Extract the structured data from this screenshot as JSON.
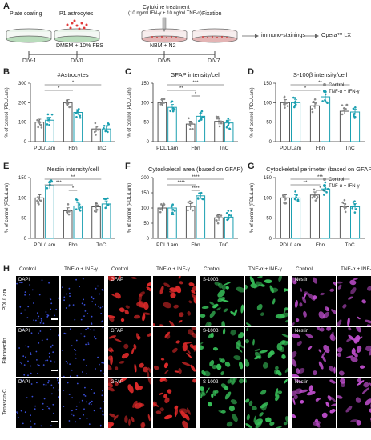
{
  "panel_a": {
    "letter": "A",
    "plate_coating": "Plate coating",
    "astrocytes": "P1 astrocytes",
    "cytokine_line1": "Cytokine treatment",
    "cytokine_line2": "(10 ng/ml IFN-γ + 10 ng/ml TNF-α)",
    "fixation": "Fixation",
    "medium1": "DMEM + 10% FBS",
    "medium2": "NBM + N2",
    "immuno": "immuno-stainings",
    "opera": "Opera™ LX",
    "days": [
      "DIV-1",
      "DIV0",
      "DIV5",
      "DIV7"
    ]
  },
  "legend": {
    "control": "Control",
    "treated": "TNF-α + IFN-γ"
  },
  "colors": {
    "control": "#8a8a8a",
    "treated": "#1a9fb0",
    "bar_edge": "#555555"
  },
  "chart_data": [
    {
      "panel": "B",
      "type": "bar",
      "title": "#Astrocytes",
      "ylabel": "% of control (PDL/Lam)",
      "ylim": [
        0,
        300
      ],
      "yticks": [
        0,
        100,
        200,
        300
      ],
      "categories": [
        "PDL/Lam",
        "Fbn",
        "TnC"
      ],
      "series": [
        {
          "name": "Control",
          "values": [
            100,
            200,
            65
          ]
        },
        {
          "name": "TNF-α + IFN-γ",
          "values": [
            110,
            150,
            65
          ]
        }
      ],
      "sig": [
        "*",
        "*"
      ]
    },
    {
      "panel": "C",
      "type": "bar",
      "title": "GFAP intensity/cell",
      "ylabel": "% of control (PDL/Lam)",
      "ylim": [
        0,
        150
      ],
      "yticks": [
        0,
        50,
        100,
        150
      ],
      "categories": [
        "PDL/Lam",
        "Fbn",
        "TnC"
      ],
      "series": [
        {
          "name": "Control",
          "values": [
            100,
            45,
            52
          ]
        },
        {
          "name": "TNF-α + IFN-γ",
          "values": [
            88,
            65,
            48
          ]
        }
      ],
      "sig": [
        "***",
        "**",
        "*"
      ]
    },
    {
      "panel": "D",
      "type": "bar",
      "title": "S-100β intensity/cell",
      "ylabel": "% of control (PDL/Lam)",
      "ylim": [
        0,
        150
      ],
      "yticks": [
        0,
        50,
        100,
        150
      ],
      "categories": [
        "PDL/Lam",
        "Fbn",
        "TnC"
      ],
      "series": [
        {
          "name": "Control",
          "values": [
            100,
            92,
            78
          ]
        },
        {
          "name": "TNF-α + IFN-γ",
          "values": [
            100,
            115,
            76
          ]
        }
      ],
      "sig": [
        "**",
        "*"
      ],
      "legend_position": "top-right"
    },
    {
      "panel": "E",
      "type": "bar",
      "title": "Nestin intensity/cell",
      "ylabel": "% of control (PDL/Lam)",
      "ylim": [
        0,
        150
      ],
      "yticks": [
        0,
        50,
        100,
        150
      ],
      "categories": [
        "PDL/Lam",
        "Fbn",
        "TnC"
      ],
      "series": [
        {
          "name": "Control",
          "values": [
            100,
            68,
            78
          ]
        },
        {
          "name": "TNF-α + IFN-γ",
          "values": [
            130,
            80,
            85
          ]
        }
      ],
      "sig": [
        "**",
        "***",
        "*"
      ]
    },
    {
      "panel": "F",
      "type": "bar",
      "title": "Cytoskeletal area (based on GFAP)",
      "ylabel": "% of control (PDL/Lam)",
      "ylim": [
        0,
        200
      ],
      "yticks": [
        0,
        50,
        100,
        150,
        200
      ],
      "categories": [
        "PDL/Lam",
        "Fbn",
        "TnC"
      ],
      "series": [
        {
          "name": "Control",
          "values": [
            100,
            105,
            68
          ]
        },
        {
          "name": "TNF-α + IFN-γ",
          "values": [
            100,
            140,
            70
          ]
        }
      ],
      "sig": [
        "****",
        "****",
        "****"
      ]
    },
    {
      "panel": "G",
      "type": "bar",
      "title": "Cytoskeletal perimeter (based on GFAP)",
      "ylabel": "% of control (PDL/Lam)",
      "ylim": [
        0,
        150
      ],
      "yticks": [
        0,
        50,
        100,
        150
      ],
      "categories": [
        "PDL/Lam",
        "Fbn",
        "TnC"
      ],
      "series": [
        {
          "name": "Control",
          "values": [
            100,
            107,
            78
          ]
        },
        {
          "name": "TNF-α + IFN-γ",
          "values": [
            100,
            122,
            78
          ]
        }
      ],
      "sig": [
        "***",
        "**",
        "*"
      ],
      "legend_position": "top-right"
    }
  ],
  "panel_h": {
    "letter": "H",
    "col_headers": [
      "Control",
      "TNF-α + INF-γ",
      "Control",
      "TNF-α + INF-γ",
      "Control",
      "TNF-α + INF-γ",
      "Control",
      "TNF-α + INF-γ"
    ],
    "rows": [
      "PDL/Lam",
      "Fibronectin",
      "Tenascin-C"
    ],
    "stains": [
      "DAPI",
      "GFAP",
      "S-100β",
      "Nestin"
    ],
    "stain_colors": [
      "#3a4fd8",
      "#e02a2a",
      "#38c25a",
      "#c24fd0"
    ]
  }
}
